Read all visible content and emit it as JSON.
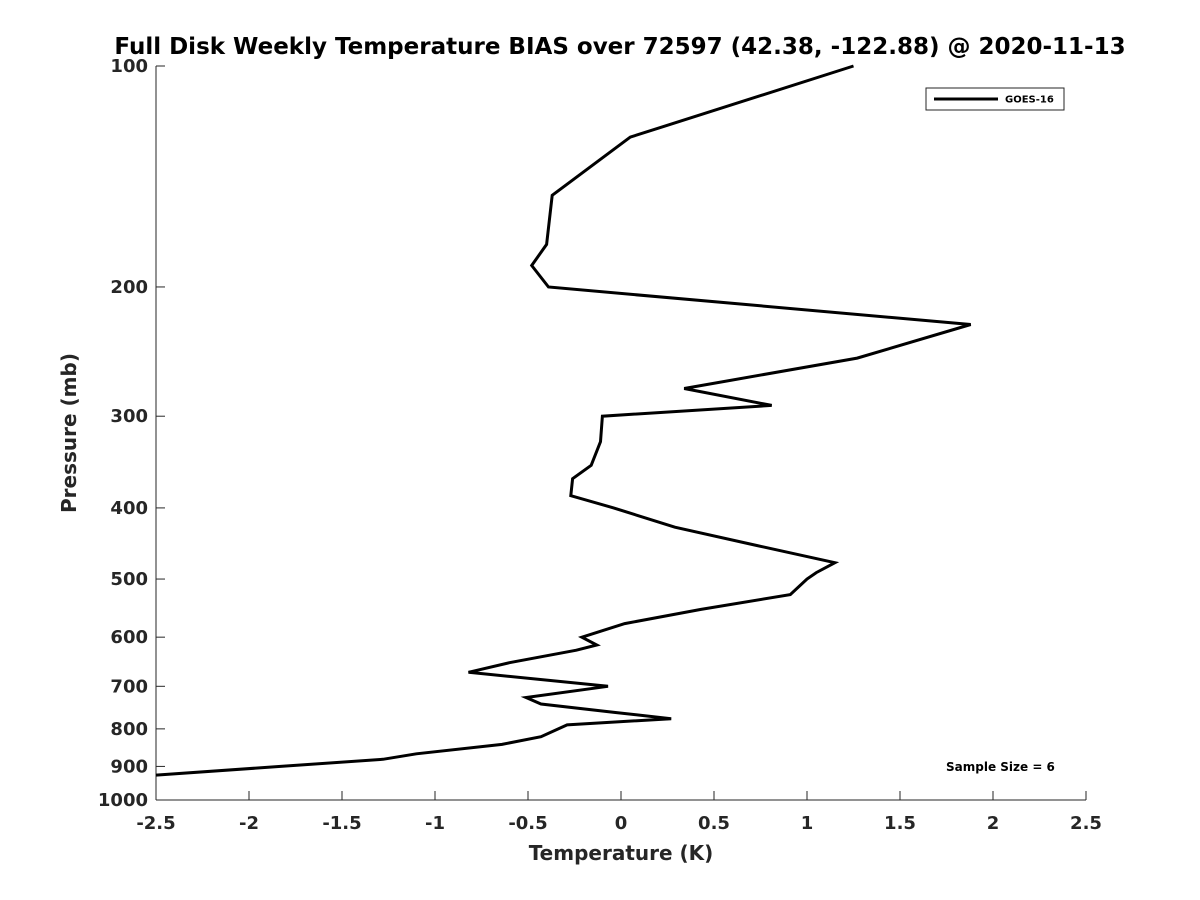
{
  "chart_data": {
    "type": "line",
    "title": "Full Disk Weekly Temperature BIAS over 72597 (42.38, -122.88) @ 2020-11-13",
    "xlabel": "Temperature (K)",
    "ylabel": "Pressure (mb)",
    "xlim": [
      -2.5,
      2.5
    ],
    "ylim": [
      100,
      1000
    ],
    "y_scale": "log",
    "y_reversed": true,
    "grid": false,
    "legend_position": "top-right",
    "x_ticks": [
      -2.5,
      -2,
      -1.5,
      -1,
      -0.5,
      0,
      0.5,
      1,
      1.5,
      2,
      2.5
    ],
    "x_tick_labels": [
      "-2.5",
      "-2",
      "-1.5",
      "-1",
      "-0.5",
      "0",
      "0.5",
      "1",
      "1.5",
      "2",
      "2.5"
    ],
    "y_ticks": [
      100,
      200,
      300,
      400,
      500,
      600,
      700,
      800,
      900,
      1000
    ],
    "y_tick_labels": [
      "100",
      "200",
      "300",
      "400",
      "500",
      "600",
      "700",
      "800",
      "900",
      "1000"
    ],
    "series": [
      {
        "name": "GOES-16",
        "color": "#000000",
        "points": [
          {
            "temp": 1.25,
            "pressure": 100
          },
          {
            "temp": 0.05,
            "pressure": 125
          },
          {
            "temp": -0.37,
            "pressure": 150
          },
          {
            "temp": -0.4,
            "pressure": 175
          },
          {
            "temp": -0.48,
            "pressure": 187
          },
          {
            "temp": -0.39,
            "pressure": 200
          },
          {
            "temp": 1.88,
            "pressure": 225
          },
          {
            "temp": 1.27,
            "pressure": 250
          },
          {
            "temp": 0.34,
            "pressure": 275
          },
          {
            "temp": 0.81,
            "pressure": 290
          },
          {
            "temp": -0.1,
            "pressure": 300
          },
          {
            "temp": -0.11,
            "pressure": 325
          },
          {
            "temp": -0.16,
            "pressure": 350
          },
          {
            "temp": -0.26,
            "pressure": 365
          },
          {
            "temp": -0.27,
            "pressure": 385
          },
          {
            "temp": -0.04,
            "pressure": 400
          },
          {
            "temp": 0.29,
            "pressure": 425
          },
          {
            "temp": 0.73,
            "pressure": 450
          },
          {
            "temp": 1.15,
            "pressure": 475
          },
          {
            "temp": 1.05,
            "pressure": 490
          },
          {
            "temp": 1.0,
            "pressure": 500
          },
          {
            "temp": 0.91,
            "pressure": 525
          },
          {
            "temp": 0.43,
            "pressure": 550
          },
          {
            "temp": 0.02,
            "pressure": 575
          },
          {
            "temp": -0.21,
            "pressure": 600
          },
          {
            "temp": -0.13,
            "pressure": 615
          },
          {
            "temp": -0.24,
            "pressure": 625
          },
          {
            "temp": -0.6,
            "pressure": 650
          },
          {
            "temp": -0.82,
            "pressure": 670
          },
          {
            "temp": -0.07,
            "pressure": 700
          },
          {
            "temp": -0.51,
            "pressure": 725
          },
          {
            "temp": -0.43,
            "pressure": 740
          },
          {
            "temp": -0.03,
            "pressure": 760
          },
          {
            "temp": 0.27,
            "pressure": 775
          },
          {
            "temp": -0.29,
            "pressure": 790
          },
          {
            "temp": -0.43,
            "pressure": 820
          },
          {
            "temp": -0.64,
            "pressure": 840
          },
          {
            "temp": -1.1,
            "pressure": 865
          },
          {
            "temp": -1.28,
            "pressure": 880
          },
          {
            "temp": -1.83,
            "pressure": 900
          },
          {
            "temp": -2.5,
            "pressure": 925
          }
        ]
      }
    ],
    "annotations": [
      {
        "text": "Sample Size = 6",
        "position": "bottom-right"
      }
    ]
  }
}
